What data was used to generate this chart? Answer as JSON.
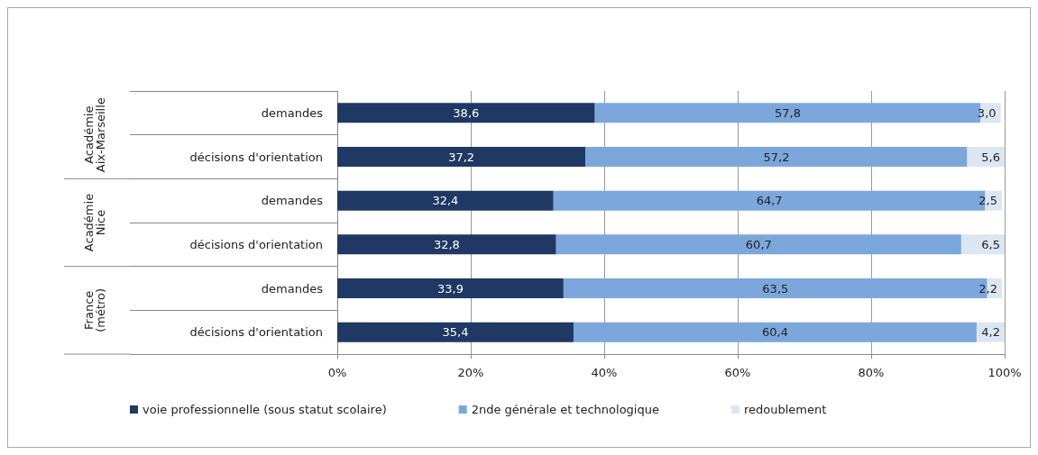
{
  "chart_data": {
    "type": "bar",
    "orientation": "horizontal",
    "stacked": true,
    "categories": [
      "demandes",
      "décisions d'orientation",
      "demandes",
      "décisions d'orientation",
      "demandes",
      "décisions d'orientation"
    ],
    "annotations": [
      "Académie\nAix-Marseille",
      "Académie\nNice",
      "France\n(métro)"
    ],
    "series": [
      {
        "name": "voie professionnelle (sous statut scolaire)",
        "color": "#1f3864",
        "values": [
          38.6,
          37.2,
          32.4,
          32.8,
          33.9,
          35.4
        ],
        "value_labels": [
          "38,6",
          "37,2",
          "32,4",
          "32,8",
          "33,9",
          "35,4"
        ]
      },
      {
        "name": "2nde générale et technologique",
        "color": "#7ba7dc",
        "values": [
          57.8,
          57.2,
          64.7,
          60.7,
          63.5,
          60.4
        ],
        "value_labels": [
          "57,8",
          "57,2",
          "64,7",
          "60,7",
          "63,5",
          "60,4"
        ]
      },
      {
        "name": "redoublement",
        "color": "#dce6f2",
        "values": [
          3.0,
          5.6,
          2.5,
          6.5,
          2.2,
          4.2
        ],
        "value_labels": [
          "3,0",
          "5,6",
          "2,5",
          "6,5",
          "2,2",
          "4,2"
        ]
      }
    ],
    "xlim": [
      0,
      100
    ],
    "xticks": [
      {
        "value": 0,
        "label": "0%"
      },
      {
        "value": 20,
        "label": "20%"
      },
      {
        "value": 40,
        "label": "40%"
      },
      {
        "value": 60,
        "label": "60%"
      },
      {
        "value": 80,
        "label": "80%"
      },
      {
        "value": 100,
        "label": "100%"
      }
    ],
    "grid": "x",
    "legend": "bottom"
  }
}
